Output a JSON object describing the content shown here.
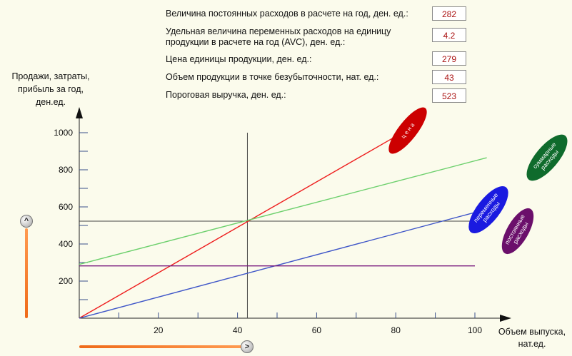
{
  "params": [
    {
      "label": "Величина постоянных расходов в расчете на год, ден. ед.:",
      "value": "282"
    },
    {
      "label": "Удельная величина переменных расходов  на единицу\nпродукции в расчете на год (AVC), ден. ед.:",
      "value": "4.2"
    },
    {
      "label": "Цена единицы продукции, ден. ед.:",
      "value": "279"
    },
    {
      "label": "Объем продукции в точке безубыточности, нат. ед.:",
      "value": "43"
    },
    {
      "label": "Пороговая выручка, ден. ед.:",
      "value": "523"
    }
  ],
  "chart_data": {
    "type": "line",
    "ylabel": "Продажи, затраты,\nприбыль за год,\nден.ед.",
    "xlabel": "Объем выпуска,\nнат.ед.",
    "xlim": [
      0,
      100
    ],
    "ylim": [
      0,
      1000
    ],
    "x_ticks": [
      20,
      40,
      60,
      80,
      100
    ],
    "y_ticks": [
      200,
      400,
      600,
      800,
      1000
    ],
    "series": [
      {
        "name": "ц е н а",
        "color": "#ee1c1c",
        "x": [
          0,
          80
        ],
        "y": [
          0,
          980
        ]
      },
      {
        "name": "суммарные расходы",
        "color": "#6dd06d",
        "x": [
          0,
          103
        ],
        "y": [
          290,
          865
        ]
      },
      {
        "name": "переменные расходы",
        "color": "#3f56c8",
        "x": [
          0,
          100
        ],
        "y": [
          0,
          570
        ]
      },
      {
        "name": "постоянные расходы",
        "color": "#7a1a7e",
        "x": [
          0,
          100
        ],
        "y": [
          282,
          282
        ]
      }
    ],
    "break_even": {
      "x": 42.5,
      "y": 523
    },
    "legend_badges": [
      {
        "label": "ц е н а",
        "color": "#cc0000"
      },
      {
        "label": "суммарные\nрасходы",
        "color": "#0f6b2c"
      },
      {
        "label": "переменные\nрасходы",
        "color": "#1a1ae0"
      },
      {
        "label": "постоянные\nрасходы",
        "color": "#6b0f6b"
      }
    ]
  },
  "controls": {
    "y_slider_knob": "^",
    "x_slider_knob": ">"
  }
}
